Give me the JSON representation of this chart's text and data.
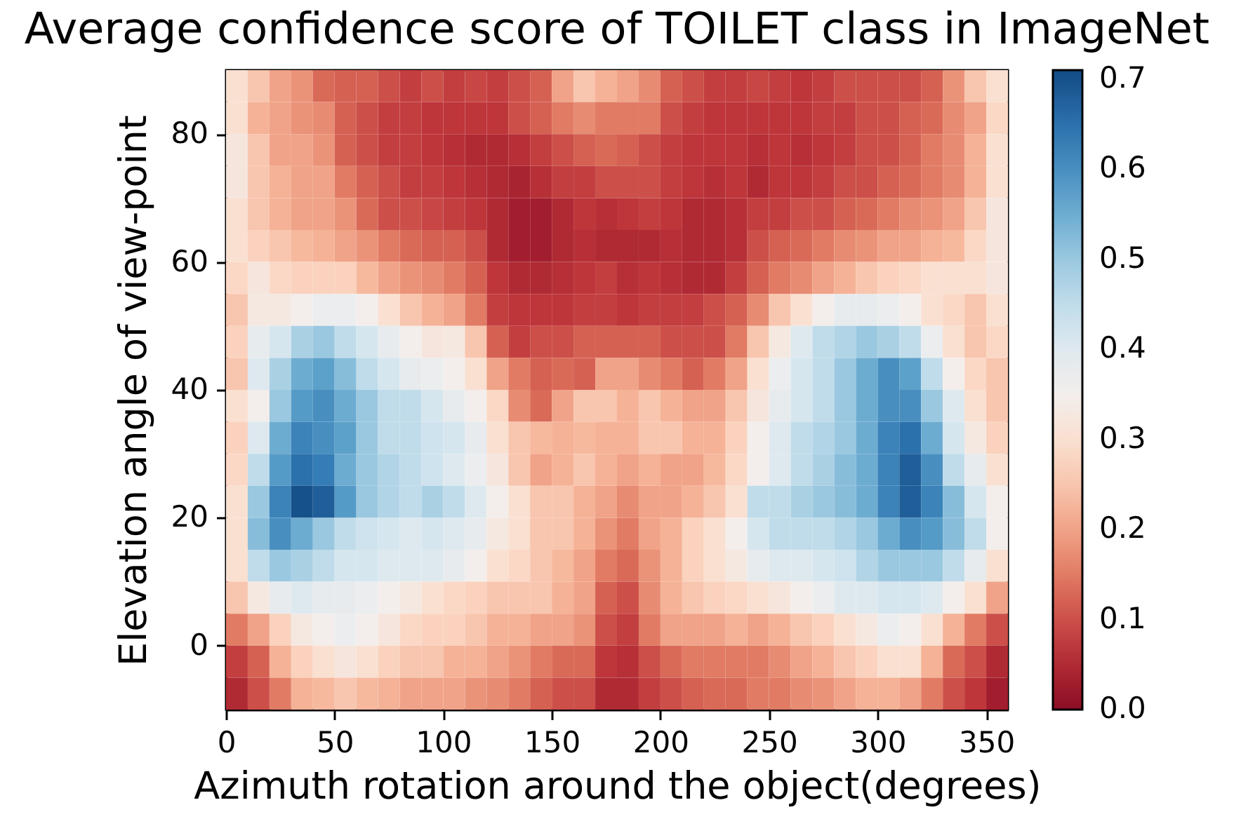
{
  "chart_data": {
    "type": "heatmap",
    "title": "Average confidence score of TOILET class in ImageNet",
    "xlabel": "Azimuth rotation around the object(degrees)",
    "ylabel": "Elevation angle of view-point",
    "x": [
      5,
      15,
      25,
      35,
      45,
      55,
      65,
      75,
      85,
      95,
      105,
      115,
      125,
      135,
      145,
      155,
      165,
      175,
      185,
      195,
      205,
      215,
      225,
      235,
      245,
      255,
      265,
      275,
      285,
      295,
      305,
      315,
      325,
      335,
      345,
      355
    ],
    "y": [
      87.5,
      82.5,
      77.5,
      72.5,
      67.5,
      62.5,
      57.5,
      52.5,
      47.5,
      42.5,
      37.5,
      32.5,
      27.5,
      22.5,
      17.5,
      12.5,
      7.5,
      2.5,
      -2.5,
      -7.5
    ],
    "xlim": [
      0,
      360
    ],
    "xticks": [
      0,
      50,
      100,
      150,
      200,
      250,
      300,
      350
    ],
    "ylim": [
      -10,
      90
    ],
    "yticks": [
      0,
      20,
      40,
      60,
      80
    ],
    "clim": [
      0,
      0.71
    ],
    "cticks": [
      {
        "value": 0,
        "label": "0.0"
      },
      0.1,
      0.2,
      0.3,
      0.4,
      0.5,
      0.6,
      0.7
    ],
    "grid": false,
    "cells": [
      [
        0.3,
        0.25,
        0.2,
        0.18,
        0.13,
        0.12,
        0.12,
        0.1,
        0.08,
        0.1,
        0.08,
        0.09,
        0.08,
        0.1,
        0.12,
        0.2,
        0.25,
        0.22,
        0.2,
        0.17,
        0.12,
        0.1,
        0.08,
        0.08,
        0.09,
        0.08,
        0.07,
        0.08,
        0.1,
        0.1,
        0.1,
        0.1,
        0.12,
        0.18,
        0.25,
        0.3
      ],
      [
        0.3,
        0.22,
        0.2,
        0.18,
        0.17,
        0.12,
        0.1,
        0.08,
        0.08,
        0.07,
        0.07,
        0.07,
        0.07,
        0.1,
        0.12,
        0.15,
        0.17,
        0.15,
        0.15,
        0.15,
        0.1,
        0.08,
        0.07,
        0.07,
        0.07,
        0.07,
        0.07,
        0.08,
        0.08,
        0.1,
        0.1,
        0.12,
        0.13,
        0.17,
        0.2,
        0.28
      ],
      [
        0.32,
        0.25,
        0.2,
        0.2,
        0.18,
        0.12,
        0.1,
        0.08,
        0.08,
        0.07,
        0.06,
        0.05,
        0.05,
        0.06,
        0.08,
        0.1,
        0.12,
        0.13,
        0.12,
        0.1,
        0.08,
        0.07,
        0.07,
        0.07,
        0.06,
        0.07,
        0.06,
        0.07,
        0.08,
        0.1,
        0.1,
        0.12,
        0.15,
        0.17,
        0.22,
        0.3
      ],
      [
        0.32,
        0.25,
        0.22,
        0.2,
        0.2,
        0.15,
        0.12,
        0.1,
        0.08,
        0.08,
        0.07,
        0.06,
        0.05,
        0.04,
        0.06,
        0.08,
        0.08,
        0.1,
        0.1,
        0.1,
        0.08,
        0.07,
        0.06,
        0.07,
        0.05,
        0.07,
        0.07,
        0.08,
        0.1,
        0.1,
        0.12,
        0.13,
        0.15,
        0.17,
        0.22,
        0.3
      ],
      [
        0.3,
        0.25,
        0.22,
        0.2,
        0.2,
        0.18,
        0.13,
        0.1,
        0.1,
        0.09,
        0.08,
        0.07,
        0.05,
        0.03,
        0.03,
        0.05,
        0.07,
        0.06,
        0.07,
        0.08,
        0.07,
        0.05,
        0.05,
        0.06,
        0.08,
        0.08,
        0.1,
        0.1,
        0.12,
        0.13,
        0.15,
        0.17,
        0.18,
        0.2,
        0.25,
        0.32
      ],
      [
        0.3,
        0.27,
        0.25,
        0.23,
        0.22,
        0.2,
        0.18,
        0.15,
        0.13,
        0.12,
        0.12,
        0.1,
        0.05,
        0.03,
        0.03,
        0.05,
        0.06,
        0.05,
        0.05,
        0.05,
        0.06,
        0.05,
        0.05,
        0.06,
        0.1,
        0.12,
        0.13,
        0.15,
        0.17,
        0.18,
        0.2,
        0.2,
        0.22,
        0.23,
        0.28,
        0.32
      ],
      [
        0.28,
        0.32,
        0.28,
        0.27,
        0.27,
        0.27,
        0.23,
        0.2,
        0.18,
        0.17,
        0.15,
        0.12,
        0.07,
        0.05,
        0.05,
        0.06,
        0.07,
        0.08,
        0.06,
        0.07,
        0.06,
        0.05,
        0.05,
        0.08,
        0.12,
        0.15,
        0.17,
        0.2,
        0.22,
        0.25,
        0.27,
        0.28,
        0.3,
        0.3,
        0.3,
        0.32
      ],
      [
        0.25,
        0.33,
        0.33,
        0.35,
        0.37,
        0.37,
        0.35,
        0.3,
        0.25,
        0.22,
        0.2,
        0.15,
        0.08,
        0.07,
        0.07,
        0.07,
        0.08,
        0.08,
        0.07,
        0.08,
        0.08,
        0.08,
        0.1,
        0.12,
        0.17,
        0.25,
        0.3,
        0.35,
        0.38,
        0.38,
        0.37,
        0.35,
        0.3,
        0.28,
        0.25,
        0.3
      ],
      [
        0.27,
        0.38,
        0.42,
        0.48,
        0.5,
        0.45,
        0.42,
        0.38,
        0.35,
        0.32,
        0.33,
        0.25,
        0.12,
        0.08,
        0.1,
        0.1,
        0.12,
        0.12,
        0.12,
        0.12,
        0.1,
        0.1,
        0.1,
        0.15,
        0.25,
        0.33,
        0.4,
        0.45,
        0.47,
        0.5,
        0.48,
        0.45,
        0.37,
        0.3,
        0.25,
        0.28
      ],
      [
        0.25,
        0.4,
        0.48,
        0.55,
        0.57,
        0.52,
        0.45,
        0.42,
        0.38,
        0.37,
        0.35,
        0.3,
        0.2,
        0.15,
        0.12,
        0.13,
        0.12,
        0.2,
        0.2,
        0.17,
        0.15,
        0.12,
        0.15,
        0.2,
        0.3,
        0.37,
        0.42,
        0.45,
        0.5,
        0.55,
        0.6,
        0.57,
        0.45,
        0.35,
        0.28,
        0.25
      ],
      [
        0.3,
        0.35,
        0.5,
        0.58,
        0.6,
        0.55,
        0.5,
        0.45,
        0.45,
        0.42,
        0.38,
        0.35,
        0.28,
        0.17,
        0.13,
        0.2,
        0.25,
        0.25,
        0.22,
        0.25,
        0.22,
        0.2,
        0.2,
        0.25,
        0.32,
        0.38,
        0.42,
        0.45,
        0.5,
        0.55,
        0.6,
        0.6,
        0.5,
        0.4,
        0.3,
        0.25
      ],
      [
        0.27,
        0.4,
        0.55,
        0.62,
        0.6,
        0.57,
        0.5,
        0.45,
        0.45,
        0.43,
        0.42,
        0.38,
        0.3,
        0.25,
        0.23,
        0.22,
        0.23,
        0.22,
        0.22,
        0.25,
        0.25,
        0.22,
        0.22,
        0.27,
        0.35,
        0.4,
        0.45,
        0.47,
        0.5,
        0.55,
        0.62,
        0.65,
        0.55,
        0.42,
        0.33,
        0.27
      ],
      [
        0.28,
        0.45,
        0.58,
        0.65,
        0.63,
        0.55,
        0.5,
        0.47,
        0.45,
        0.43,
        0.4,
        0.37,
        0.32,
        0.25,
        0.2,
        0.22,
        0.25,
        0.22,
        0.2,
        0.22,
        0.2,
        0.2,
        0.23,
        0.28,
        0.35,
        0.4,
        0.45,
        0.48,
        0.52,
        0.55,
        0.62,
        0.68,
        0.6,
        0.45,
        0.38,
        0.3
      ],
      [
        0.3,
        0.5,
        0.62,
        0.7,
        0.68,
        0.58,
        0.5,
        0.47,
        0.45,
        0.48,
        0.45,
        0.4,
        0.35,
        0.3,
        0.25,
        0.25,
        0.22,
        0.2,
        0.17,
        0.2,
        0.2,
        0.22,
        0.25,
        0.3,
        0.45,
        0.45,
        0.48,
        0.5,
        0.52,
        0.55,
        0.62,
        0.68,
        0.62,
        0.52,
        0.42,
        0.35
      ],
      [
        0.3,
        0.52,
        0.6,
        0.55,
        0.5,
        0.45,
        0.43,
        0.42,
        0.4,
        0.42,
        0.4,
        0.38,
        0.33,
        0.3,
        0.25,
        0.25,
        0.22,
        0.18,
        0.15,
        0.2,
        0.22,
        0.27,
        0.3,
        0.35,
        0.42,
        0.45,
        0.45,
        0.45,
        0.47,
        0.5,
        0.55,
        0.6,
        0.58,
        0.52,
        0.45,
        0.35
      ],
      [
        0.3,
        0.45,
        0.5,
        0.48,
        0.45,
        0.42,
        0.42,
        0.4,
        0.4,
        0.4,
        0.38,
        0.35,
        0.3,
        0.28,
        0.25,
        0.23,
        0.2,
        0.15,
        0.13,
        0.18,
        0.22,
        0.27,
        0.3,
        0.33,
        0.38,
        0.4,
        0.4,
        0.42,
        0.43,
        0.47,
        0.5,
        0.5,
        0.5,
        0.45,
        0.38,
        0.3
      ],
      [
        0.25,
        0.33,
        0.38,
        0.4,
        0.38,
        0.38,
        0.37,
        0.35,
        0.33,
        0.3,
        0.28,
        0.27,
        0.25,
        0.25,
        0.25,
        0.22,
        0.2,
        0.12,
        0.1,
        0.17,
        0.22,
        0.25,
        0.27,
        0.28,
        0.3,
        0.32,
        0.35,
        0.37,
        0.4,
        0.4,
        0.42,
        0.42,
        0.4,
        0.35,
        0.3,
        0.2
      ],
      [
        0.15,
        0.2,
        0.27,
        0.33,
        0.35,
        0.37,
        0.35,
        0.32,
        0.28,
        0.27,
        0.27,
        0.25,
        0.22,
        0.22,
        0.2,
        0.2,
        0.18,
        0.1,
        0.08,
        0.15,
        0.2,
        0.2,
        0.2,
        0.22,
        0.2,
        0.22,
        0.25,
        0.27,
        0.3,
        0.33,
        0.37,
        0.35,
        0.3,
        0.22,
        0.15,
        0.1
      ],
      [
        0.08,
        0.12,
        0.22,
        0.27,
        0.3,
        0.32,
        0.3,
        0.27,
        0.25,
        0.25,
        0.22,
        0.22,
        0.2,
        0.18,
        0.15,
        0.13,
        0.13,
        0.07,
        0.06,
        0.1,
        0.13,
        0.15,
        0.15,
        0.15,
        0.15,
        0.17,
        0.2,
        0.22,
        0.25,
        0.27,
        0.3,
        0.3,
        0.22,
        0.13,
        0.1,
        0.05
      ],
      [
        0.05,
        0.1,
        0.15,
        0.22,
        0.23,
        0.25,
        0.23,
        0.22,
        0.2,
        0.2,
        0.2,
        0.18,
        0.17,
        0.15,
        0.12,
        0.1,
        0.1,
        0.05,
        0.05,
        0.08,
        0.1,
        0.12,
        0.13,
        0.13,
        0.15,
        0.15,
        0.17,
        0.18,
        0.2,
        0.22,
        0.22,
        0.2,
        0.15,
        0.1,
        0.07,
        0.03
      ]
    ]
  }
}
